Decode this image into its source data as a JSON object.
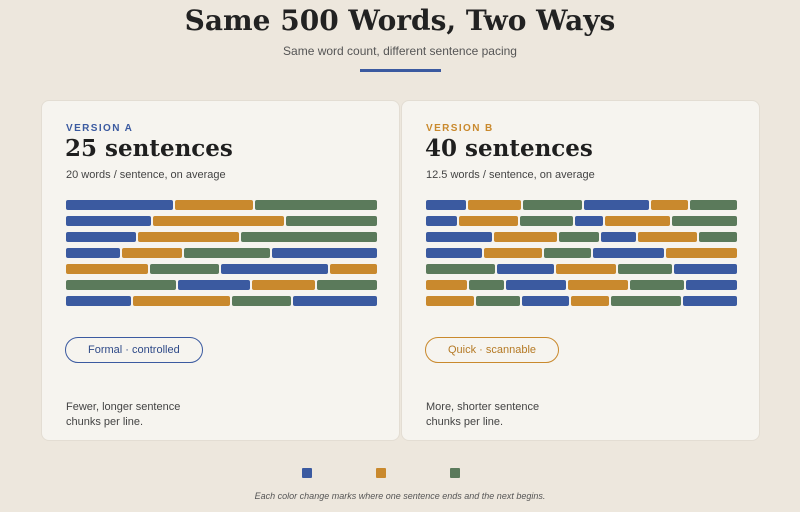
{
  "title": "Same 500 Words, Two Ways",
  "subtitle": "Same word count, different sentence pacing",
  "colors": {
    "blue": "#3b5aa0",
    "amber": "#c9892d",
    "green": "#5b7a5b",
    "background": "#ede7dd",
    "card": "#f6f4ef"
  },
  "version_a": {
    "kicker": "VERSION A",
    "headline": "25 sentences",
    "subline": "20 words / sentence, on average",
    "tag": "Formal · controlled",
    "note": "Fewer, longer sentence chunks per line.",
    "sentences_per_line": [
      [
        {
          "c": "blue",
          "w": 34
        },
        {
          "c": "amber",
          "w": 25
        },
        {
          "c": "green",
          "w": 39
        }
      ],
      [
        {
          "c": "blue",
          "w": 27
        },
        {
          "c": "amber",
          "w": 42
        },
        {
          "c": "green",
          "w": 29
        }
      ],
      [
        {
          "c": "blue",
          "w": 22
        },
        {
          "c": "amber",
          "w": 32
        },
        {
          "c": "green",
          "w": 43
        }
      ],
      [
        {
          "c": "blue",
          "w": 17
        },
        {
          "c": "amber",
          "w": 19
        },
        {
          "c": "green",
          "w": 27
        },
        {
          "c": "blue",
          "w": 33
        }
      ],
      [
        {
          "c": "amber",
          "w": 26
        },
        {
          "c": "green",
          "w": 22
        },
        {
          "c": "blue",
          "w": 34
        },
        {
          "c": "amber",
          "w": 15
        }
      ],
      [
        {
          "c": "green",
          "w": 35
        },
        {
          "c": "blue",
          "w": 23
        },
        {
          "c": "amber",
          "w": 20
        },
        {
          "c": "green",
          "w": 19
        }
      ],
      [
        {
          "c": "blue",
          "w": 21
        },
        {
          "c": "amber",
          "w": 31
        },
        {
          "c": "green",
          "w": 19
        },
        {
          "c": "blue",
          "w": 27
        }
      ]
    ]
  },
  "version_b": {
    "kicker": "VERSION B",
    "headline": "40 sentences",
    "subline": "12.5 words / sentence, on average",
    "tag": "Quick · scannable",
    "note": "More, shorter sentence chunks per line.",
    "sentences_per_line": [
      [
        {
          "c": "blue",
          "w": 13
        },
        {
          "c": "amber",
          "w": 17
        },
        {
          "c": "green",
          "w": 19
        },
        {
          "c": "blue",
          "w": 21
        },
        {
          "c": "amber",
          "w": 12
        },
        {
          "c": "green",
          "w": 15
        }
      ],
      [
        {
          "c": "blue",
          "w": 10
        },
        {
          "c": "amber",
          "w": 19
        },
        {
          "c": "green",
          "w": 17
        },
        {
          "c": "blue",
          "w": 9
        },
        {
          "c": "amber",
          "w": 21
        },
        {
          "c": "green",
          "w": 21
        }
      ],
      [
        {
          "c": "blue",
          "w": 21
        },
        {
          "c": "amber",
          "w": 20
        },
        {
          "c": "green",
          "w": 13
        },
        {
          "c": "blue",
          "w": 11
        },
        {
          "c": "amber",
          "w": 19
        },
        {
          "c": "green",
          "w": 12
        }
      ],
      [
        {
          "c": "blue",
          "w": 18
        },
        {
          "c": "amber",
          "w": 19
        },
        {
          "c": "green",
          "w": 15
        },
        {
          "c": "blue",
          "w": 23
        },
        {
          "c": "amber",
          "w": 23
        }
      ],
      [
        {
          "c": "green",
          "w": 22
        },
        {
          "c": "blue",
          "w": 18
        },
        {
          "c": "amber",
          "w": 19
        },
        {
          "c": "green",
          "w": 17
        },
        {
          "c": "blue",
          "w": 20
        }
      ],
      [
        {
          "c": "amber",
          "w": 13
        },
        {
          "c": "green",
          "w": 11
        },
        {
          "c": "blue",
          "w": 19
        },
        {
          "c": "amber",
          "w": 19
        },
        {
          "c": "green",
          "w": 17
        },
        {
          "c": "blue",
          "w": 16
        }
      ],
      [
        {
          "c": "amber",
          "w": 15
        },
        {
          "c": "green",
          "w": 14
        },
        {
          "c": "blue",
          "w": 15
        },
        {
          "c": "amber",
          "w": 12
        },
        {
          "c": "green",
          "w": 22
        },
        {
          "c": "blue",
          "w": 17
        }
      ]
    ]
  },
  "legend": {
    "items": [
      {
        "color": "blue"
      },
      {
        "color": "amber"
      },
      {
        "color": "green"
      }
    ],
    "caption": "Each color change marks where one sentence ends and the next begins."
  }
}
